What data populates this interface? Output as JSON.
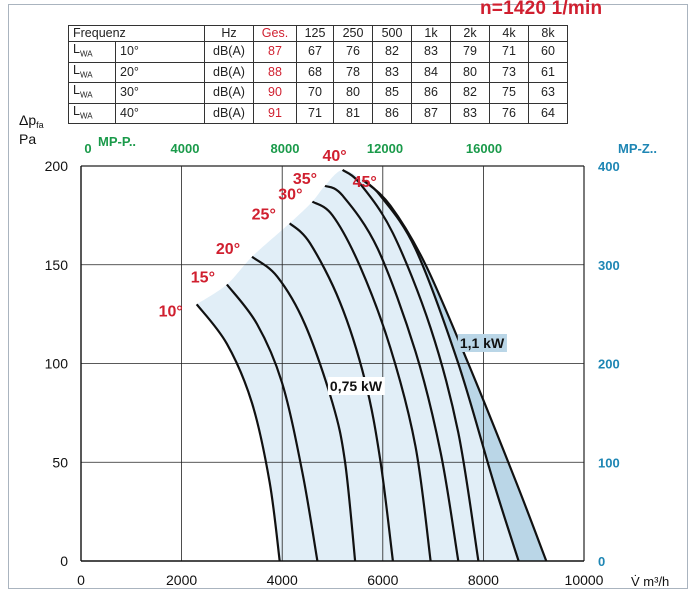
{
  "speed_label": "n=1420 1/min",
  "sound_table": {
    "header": [
      "Frequenz",
      "",
      "Hz",
      "Ges.",
      "125",
      "250",
      "500",
      "1k",
      "2k",
      "4k",
      "8k"
    ],
    "rows": [
      {
        "label": "L",
        "sub": "WA",
        "angle": "10°",
        "unit": "dB(A)",
        "ges": "87",
        "bands": [
          "67",
          "76",
          "82",
          "83",
          "79",
          "71",
          "60"
        ]
      },
      {
        "label": "L",
        "sub": "WA",
        "angle": "20°",
        "unit": "dB(A)",
        "ges": "88",
        "bands": [
          "68",
          "78",
          "83",
          "84",
          "80",
          "73",
          "61"
        ]
      },
      {
        "label": "L",
        "sub": "WA",
        "angle": "30°",
        "unit": "dB(A)",
        "ges": "90",
        "bands": [
          "70",
          "80",
          "85",
          "86",
          "82",
          "75",
          "63"
        ]
      },
      {
        "label": "L",
        "sub": "WA",
        "angle": "40°",
        "unit": "dB(A)",
        "ges": "91",
        "bands": [
          "71",
          "81",
          "86",
          "87",
          "83",
          "76",
          "64"
        ]
      }
    ]
  },
  "chart_data": {
    "type": "line",
    "y_label_main": "Δp",
    "y_label_sub": "fa",
    "y_unit": "Pa",
    "x_unit": "V̇ m³/h",
    "xlim": [
      0,
      10000
    ],
    "ylim": [
      0,
      200
    ],
    "x_ticks": [
      "0",
      "2000",
      "4000",
      "6000",
      "8000",
      "10000"
    ],
    "y_ticks": [
      "0",
      "50",
      "100",
      "150",
      "200"
    ],
    "top_axis": {
      "label": "MP-P..",
      "ticks": [
        "0",
        "4000",
        "8000",
        "12000",
        "16000"
      ],
      "color": "#1a9a4a"
    },
    "right_axis": {
      "label": "MP-Z..",
      "ticks": [
        "0",
        "100",
        "200",
        "300",
        "400"
      ],
      "color": "#1e86b4"
    },
    "grid": true,
    "series": [
      {
        "name": "10°",
        "points": [
          [
            2300,
            130
          ],
          [
            2900,
            110
          ],
          [
            3400,
            80
          ],
          [
            3750,
            40
          ],
          [
            3950,
            0
          ]
        ]
      },
      {
        "name": "15°",
        "points": [
          [
            2900,
            140
          ],
          [
            3500,
            120
          ],
          [
            4000,
            90
          ],
          [
            4400,
            45
          ],
          [
            4700,
            0
          ]
        ]
      },
      {
        "name": "20°",
        "points": [
          [
            3400,
            154
          ],
          [
            3900,
            144
          ],
          [
            4450,
            120
          ],
          [
            5000,
            80
          ],
          [
            5250,
            50
          ],
          [
            5450,
            0
          ]
        ]
      },
      {
        "name": "25°",
        "points": [
          [
            4150,
            171
          ],
          [
            4550,
            161
          ],
          [
            5150,
            131
          ],
          [
            5650,
            91
          ],
          [
            5950,
            51
          ],
          [
            6200,
            0
          ]
        ]
      },
      {
        "name": "30°",
        "points": [
          [
            4600,
            182
          ],
          [
            5000,
            175
          ],
          [
            5550,
            149
          ],
          [
            6150,
            108
          ],
          [
            6650,
            58
          ],
          [
            6950,
            0
          ]
        ]
      },
      {
        "name": "35°",
        "points": [
          [
            4850,
            190
          ],
          [
            5200,
            185
          ],
          [
            5900,
            158
          ],
          [
            6650,
            106
          ],
          [
            7150,
            55
          ],
          [
            7500,
            0
          ]
        ]
      },
      {
        "name": "40°",
        "points": [
          [
            5200,
            198
          ],
          [
            5550,
            191
          ],
          [
            6200,
            166
          ],
          [
            6950,
            118
          ],
          [
            7500,
            65
          ],
          [
            7900,
            0
          ]
        ]
      },
      {
        "name": "45°",
        "points": [
          [
            5600,
            193
          ],
          [
            5950,
            185
          ],
          [
            6650,
            158
          ],
          [
            7500,
            100
          ],
          [
            8200,
            40
          ],
          [
            8700,
            0
          ]
        ]
      }
    ],
    "power_labels": [
      "0,75 kW",
      "1,1 kW"
    ],
    "power_band_outer": [
      [
        5600,
        193
      ],
      [
        6150,
        180
      ],
      [
        6850,
        150
      ],
      [
        7700,
        100
      ],
      [
        8650,
        40
      ],
      [
        9250,
        0
      ]
    ],
    "colors": {
      "fill_light": "#e1eef7",
      "fill_dark": "#bad6e7",
      "curve": "#111111",
      "angle_label": "#d01f2f",
      "top_axis": "#1a9a4a",
      "right_axis": "#1e86b4"
    }
  }
}
